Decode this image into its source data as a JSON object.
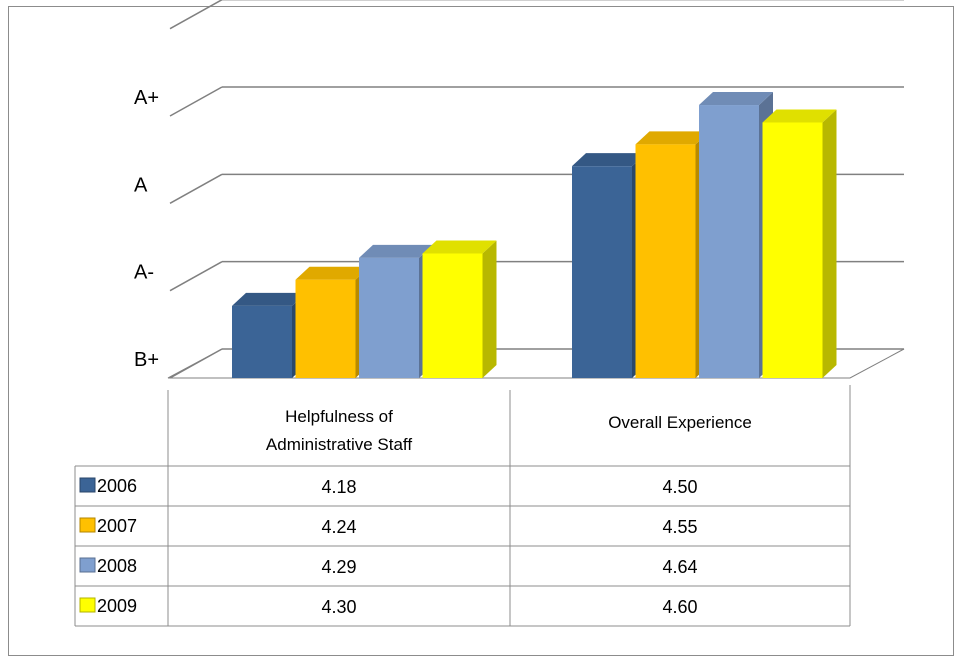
{
  "chart_data": {
    "type": "bar",
    "categories": [
      [
        "Helpfulness of",
        "Administrative Staff"
      ],
      [
        "Overall Experience"
      ]
    ],
    "series": [
      {
        "name": "2006",
        "values": [
          4.18,
          4.5
        ],
        "labels": [
          "4.18",
          "4.50"
        ],
        "color": "#3b6496"
      },
      {
        "name": "2007",
        "values": [
          4.24,
          4.55
        ],
        "labels": [
          "4.24",
          "4.55"
        ],
        "color": "#ffc000"
      },
      {
        "name": "2008",
        "values": [
          4.29,
          4.64
        ],
        "labels": [
          "4.29",
          "4.64"
        ],
        "color": "#7f9fcf"
      },
      {
        "name": "2009",
        "values": [
          4.3,
          4.6
        ],
        "labels": [
          "4.30",
          "4.60"
        ],
        "color": "#ffff00"
      }
    ],
    "y_tick_labels": [
      {
        "label": "B+",
        "value": 4.0
      },
      {
        "label": "A-",
        "value": 4.2
      },
      {
        "label": "A",
        "value": 4.4
      },
      {
        "label": "A+",
        "value": 4.6
      }
    ],
    "ylim": [
      4.0,
      4.8
    ],
    "grid": true,
    "legend": "data table",
    "style": "3d"
  }
}
